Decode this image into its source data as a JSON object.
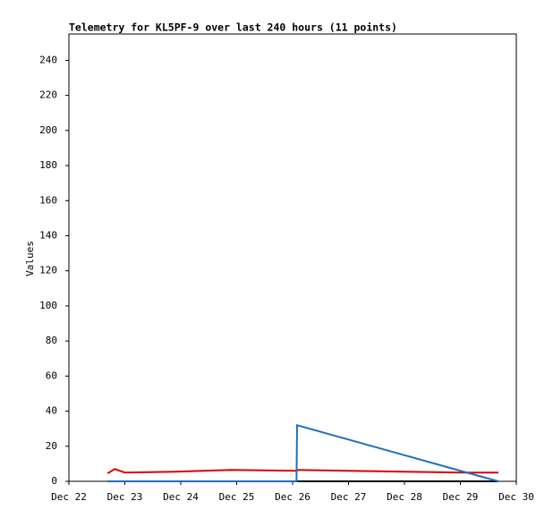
{
  "chart_data": {
    "type": "line",
    "title": "Telemetry for KL5PF-9 over last 240 hours (11 points)",
    "y_label": "Values",
    "x": [
      0.69,
      0.82,
      1.0,
      1.9,
      2.9,
      4.07,
      4.08,
      5.0,
      6.0,
      7.0,
      7.68
    ],
    "xlim": [
      0,
      8
    ],
    "xticks": [
      {
        "value": 0,
        "label": "Dec 22"
      },
      {
        "value": 1,
        "label": "Dec 23"
      },
      {
        "value": 2,
        "label": "Dec 24"
      },
      {
        "value": 3,
        "label": "Dec 25"
      },
      {
        "value": 4,
        "label": "Dec 26"
      },
      {
        "value": 5,
        "label": "Dec 27"
      },
      {
        "value": 6,
        "label": "Dec 28"
      },
      {
        "value": 7,
        "label": "Dec 29"
      },
      {
        "value": 8,
        "label": "Dec 30"
      }
    ],
    "ylim": [
      0,
      255
    ],
    "yticks": [
      0,
      20,
      40,
      60,
      80,
      100,
      120,
      140,
      160,
      180,
      200,
      220,
      240
    ],
    "series": [
      {
        "color": "#000000",
        "values": [
          0,
          0,
          0,
          0,
          0,
          0,
          0,
          0,
          0,
          0,
          0
        ]
      },
      {
        "color": "#dd0000",
        "values": [
          4.5,
          7,
          5,
          5.5,
          6.5,
          6,
          6.5,
          6,
          5.5,
          5,
          5
        ]
      },
      {
        "color": "#1f6fc0",
        "values": [
          0,
          0,
          0,
          0,
          0,
          0,
          32,
          23.8,
          14.9,
          6,
          0
        ]
      }
    ]
  }
}
